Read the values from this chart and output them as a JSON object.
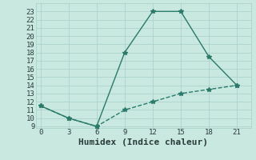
{
  "xlabel": "Humidex (Indice chaleur)",
  "bg_color": "#c8e8e0",
  "line_color": "#2a7a6a",
  "line1_x": [
    0,
    3,
    6,
    9,
    12,
    15,
    18,
    21
  ],
  "line1_y": [
    11.5,
    10,
    9,
    18,
    23,
    23,
    17.5,
    14
  ],
  "line2_x": [
    0,
    3,
    6,
    9,
    12,
    15,
    18,
    21
  ],
  "line2_y": [
    11.5,
    10,
    9,
    11,
    12,
    13,
    13.5,
    14
  ],
  "xlim": [
    -0.5,
    22.5
  ],
  "ylim": [
    8.8,
    24
  ],
  "xticks": [
    0,
    3,
    6,
    9,
    12,
    15,
    18,
    21
  ],
  "yticks": [
    9,
    10,
    11,
    12,
    13,
    14,
    15,
    16,
    17,
    18,
    19,
    20,
    21,
    22,
    23
  ],
  "grid_color": "#a8cfc8",
  "marker": "*",
  "markersize": 4,
  "linewidth": 1.0,
  "font_color": "#2a3a38",
  "xlabel_fontsize": 8,
  "tick_fontsize": 6.5
}
